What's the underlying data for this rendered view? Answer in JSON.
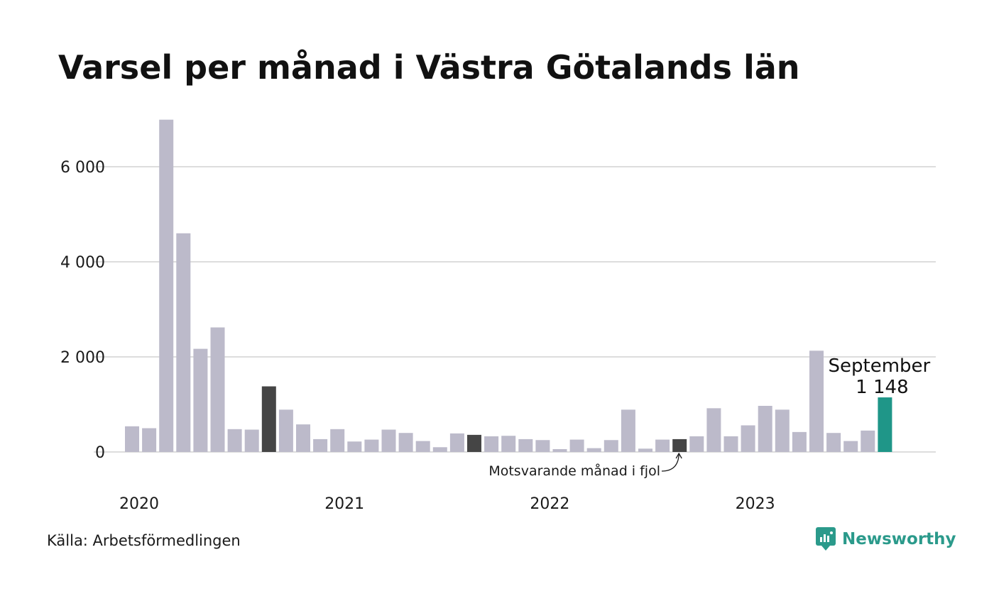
{
  "title": "Varsel per månad i Västra Götalands län",
  "source": "Källa: Arbetsförmedlingen",
  "brand": "Newsworthy",
  "colors": {
    "bar": "#bcbaca",
    "highlight_prev_year": "#454545",
    "current": "#1f9688",
    "grid": "#dddddd",
    "brand": "#2b9a8b"
  },
  "chart_data": {
    "type": "bar",
    "ylim": [
      0,
      7000
    ],
    "yticks": [
      0,
      2000,
      4000,
      6000
    ],
    "ytick_labels": [
      "0",
      "2 000",
      "4 000",
      "6 000"
    ],
    "x_labels": [
      {
        "index": 0,
        "label": "2020"
      },
      {
        "index": 12,
        "label": "2021"
      },
      {
        "index": 24,
        "label": "2022"
      },
      {
        "index": 36,
        "label": "2023"
      }
    ],
    "values": [
      540,
      500,
      6990,
      4600,
      2170,
      2620,
      480,
      470,
      1380,
      890,
      580,
      270,
      480,
      220,
      260,
      470,
      400,
      230,
      100,
      390,
      360,
      330,
      340,
      270,
      250,
      60,
      260,
      80,
      250,
      890,
      70,
      260,
      270,
      330,
      920,
      330,
      560,
      970,
      890,
      420,
      2130,
      400,
      230,
      450,
      1148
    ],
    "highlight_prev_year_indices": [
      8,
      20,
      32
    ],
    "current_index": 44,
    "current_label": {
      "month": "September",
      "value": "1 148"
    },
    "annotation": "Motsvarande månad i fjol",
    "grid": true
  }
}
